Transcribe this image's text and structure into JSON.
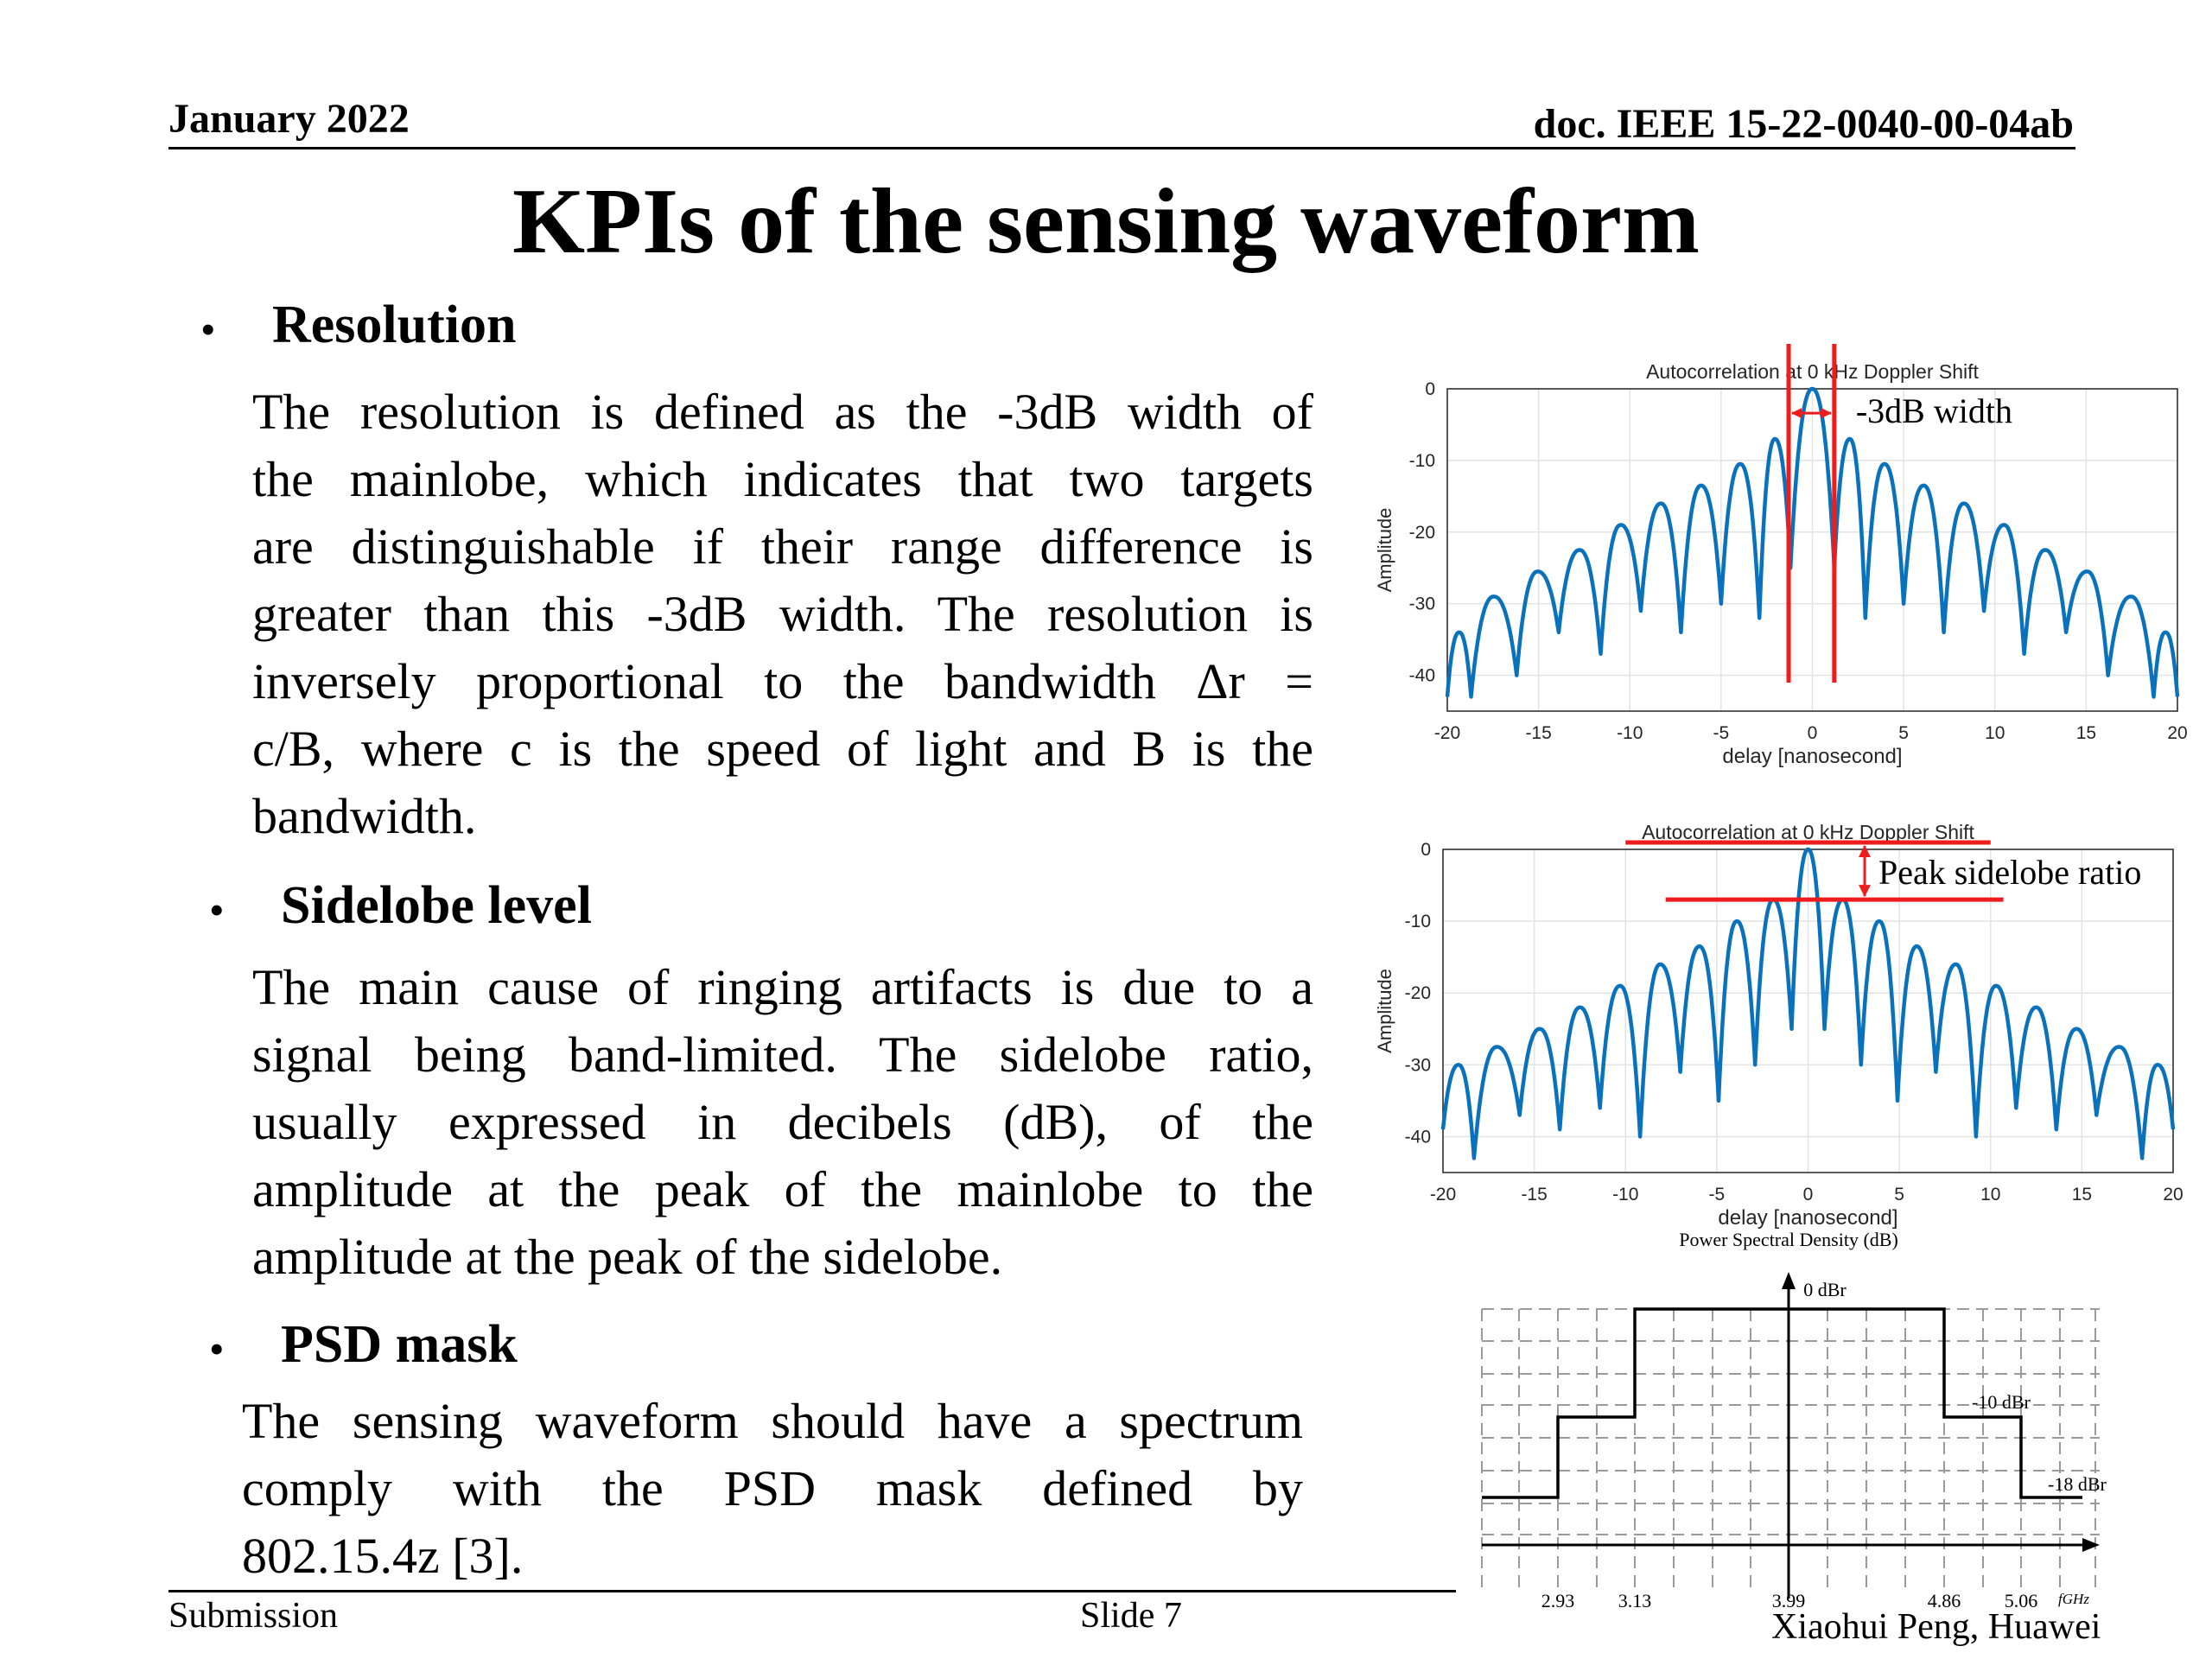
{
  "header": {
    "date": "January 2022",
    "doc_id": "doc. IEEE 15-22-0040-00-04ab"
  },
  "title": "KPIs of the sensing waveform",
  "sections": [
    {
      "heading": "Resolution",
      "lines": [
        "The resolution is defined as the -3dB width of",
        "the mainlobe, which indicates that two targets",
        "are distinguishable if their range difference is",
        "greater than this -3dB width. The resolution is",
        "inversely proportional to the bandwidth Δr =",
        "c/B, where c is the speed of light and B is the",
        "bandwidth."
      ]
    },
    {
      "heading": "Sidelobe level",
      "lines": [
        "The main cause of ringing artifacts is due to a",
        "signal being band-limited. The sidelobe ratio,",
        "usually expressed in decibels (dB), of the",
        "amplitude at the peak of the mainlobe to the",
        "amplitude at the peak of the sidelobe."
      ]
    },
    {
      "heading": "PSD mask",
      "lines": [
        "The sensing waveform should have a spectrum",
        "comply with the PSD mask defined by",
        "802.15.4z [3]."
      ]
    }
  ],
  "footer": {
    "left": "Submission",
    "center": "Slide 7",
    "right": "Xiaohui Peng, Huawei"
  },
  "colors": {
    "curve": "#0a72bd",
    "annotation": "#ee1c1c"
  },
  "chart_data": [
    {
      "type": "line",
      "title": "Autocorrelation at 0 kHz Doppler Shift",
      "xlabel": "delay [nanosecond]",
      "ylabel": "Amplitude",
      "xlim": [
        -20,
        20
      ],
      "ylim": [
        -45,
        0
      ],
      "xticks": [
        -20,
        -15,
        -10,
        -5,
        0,
        5,
        10,
        15,
        20
      ],
      "yticks": [
        0,
        -10,
        -20,
        -30,
        -40
      ],
      "grid": true,
      "series": [
        {
          "lobes": [
            {
              "x_start": -20,
              "x_end": -18.7,
              "peak": -34
            },
            {
              "x_start": -18.7,
              "x_end": -16.2,
              "peak": -29
            },
            {
              "x_start": -16.2,
              "x_end": -13.9,
              "peak": -25.5
            },
            {
              "x_start": -13.9,
              "x_end": -11.6,
              "peak": -22.5
            },
            {
              "x_start": -11.6,
              "x_end": -9.4,
              "peak": -19
            },
            {
              "x_start": -9.4,
              "x_end": -7.2,
              "peak": -16
            },
            {
              "x_start": -7.2,
              "x_end": -5.0,
              "peak": -13.5
            },
            {
              "x_start": -5.0,
              "x_end": -2.9,
              "peak": -10.5
            },
            {
              "x_start": -2.9,
              "x_end": -1.2,
              "peak": -7
            },
            {
              "x_start": -1.2,
              "x_end": 1.2,
              "peak": 0
            },
            {
              "x_start": 1.2,
              "x_end": 2.9,
              "peak": -7
            },
            {
              "x_start": 2.9,
              "x_end": 5.0,
              "peak": -10.5
            },
            {
              "x_start": 5.0,
              "x_end": 7.2,
              "peak": -13.5
            },
            {
              "x_start": 7.2,
              "x_end": 9.4,
              "peak": -16
            },
            {
              "x_start": 9.4,
              "x_end": 11.6,
              "peak": -19
            },
            {
              "x_start": 11.6,
              "x_end": 13.9,
              "peak": -22.5
            },
            {
              "x_start": 13.9,
              "x_end": 16.2,
              "peak": -25.5
            },
            {
              "x_start": 16.2,
              "x_end": 18.7,
              "peak": -29
            },
            {
              "x_start": 18.7,
              "x_end": 20,
              "peak": -34
            }
          ],
          "null_depths": [
            -43,
            -40,
            -34,
            -37,
            -31,
            -34,
            -30,
            -32,
            -25,
            -25,
            -32,
            -30,
            -34,
            -31,
            -37,
            -34,
            -40,
            -43
          ]
        }
      ],
      "annotation": {
        "label": "-3dB width",
        "vlines_x": [
          -1.3,
          1.2
        ]
      }
    },
    {
      "type": "line",
      "title": "Autocorrelation at 0 kHz Doppler Shift",
      "xlabel": "delay [nanosecond]",
      "ylabel": "Amplitude",
      "xlim": [
        -20,
        20
      ],
      "ylim": [
        -45,
        0
      ],
      "xticks": [
        -20,
        -15,
        -10,
        -5,
        0,
        5,
        10,
        15,
        20
      ],
      "yticks": [
        0,
        -10,
        -20,
        -30,
        -40
      ],
      "grid": true,
      "series": [
        {
          "lobes": [
            {
              "x_start": -20,
              "x_end": -18.3,
              "peak": -30
            },
            {
              "x_start": -18.3,
              "x_end": -15.8,
              "peak": -27.5
            },
            {
              "x_start": -15.8,
              "x_end": -13.6,
              "peak": -25
            },
            {
              "x_start": -13.6,
              "x_end": -11.4,
              "peak": -22
            },
            {
              "x_start": -11.4,
              "x_end": -9.2,
              "peak": -19
            },
            {
              "x_start": -9.2,
              "x_end": -7.0,
              "peak": -16
            },
            {
              "x_start": -7.0,
              "x_end": -4.9,
              "peak": -13.5
            },
            {
              "x_start": -4.9,
              "x_end": -2.9,
              "peak": -10
            },
            {
              "x_start": -2.9,
              "x_end": -0.9,
              "peak": -7
            },
            {
              "x_start": -0.9,
              "x_end": 0.9,
              "peak": 0
            },
            {
              "x_start": 0.9,
              "x_end": 2.9,
              "peak": -7
            },
            {
              "x_start": 2.9,
              "x_end": 4.9,
              "peak": -10
            },
            {
              "x_start": 4.9,
              "x_end": 7.0,
              "peak": -13.5
            },
            {
              "x_start": 7.0,
              "x_end": 9.2,
              "peak": -16
            },
            {
              "x_start": 9.2,
              "x_end": 11.4,
              "peak": -19
            },
            {
              "x_start": 11.4,
              "x_end": 13.6,
              "peak": -22
            },
            {
              "x_start": 13.6,
              "x_end": 15.8,
              "peak": -25
            },
            {
              "x_start": 15.8,
              "x_end": 18.3,
              "peak": -27.5
            },
            {
              "x_start": 18.3,
              "x_end": 20,
              "peak": -30
            }
          ],
          "null_depths": [
            -43,
            -37,
            -39,
            -36,
            -40,
            -31,
            -35,
            -30,
            -25,
            -25,
            -30,
            -35,
            -31,
            -40,
            -36,
            -39,
            -37,
            -43
          ]
        }
      ],
      "annotation": {
        "label": "Peak sidelobe ratio",
        "hline_top_y": 0,
        "hline_sidelobe_y": -7
      }
    },
    {
      "type": "line",
      "title": "Power Spectral Density (dB)",
      "xlabel": "f_GHz",
      "x_ticks": [
        "2.93",
        "3.13",
        "3.99",
        "4.86",
        "5.06"
      ],
      "levels": [
        {
          "label": "0 dBr",
          "value": 0
        },
        {
          "label": "-10 dBr",
          "value": -10
        },
        {
          "label": "-18 dBr",
          "value": -18
        }
      ],
      "mask_steps": [
        {
          "from": "",
          "to": "2.93",
          "level": -18
        },
        {
          "from": "2.93",
          "to": "3.13",
          "level": -10
        },
        {
          "from": "3.13",
          "to": "4.86",
          "level": 0
        },
        {
          "from": "4.86",
          "to": "5.06",
          "level": -10
        },
        {
          "from": "5.06",
          "to": "",
          "level": -18
        }
      ],
      "grid": true
    }
  ]
}
